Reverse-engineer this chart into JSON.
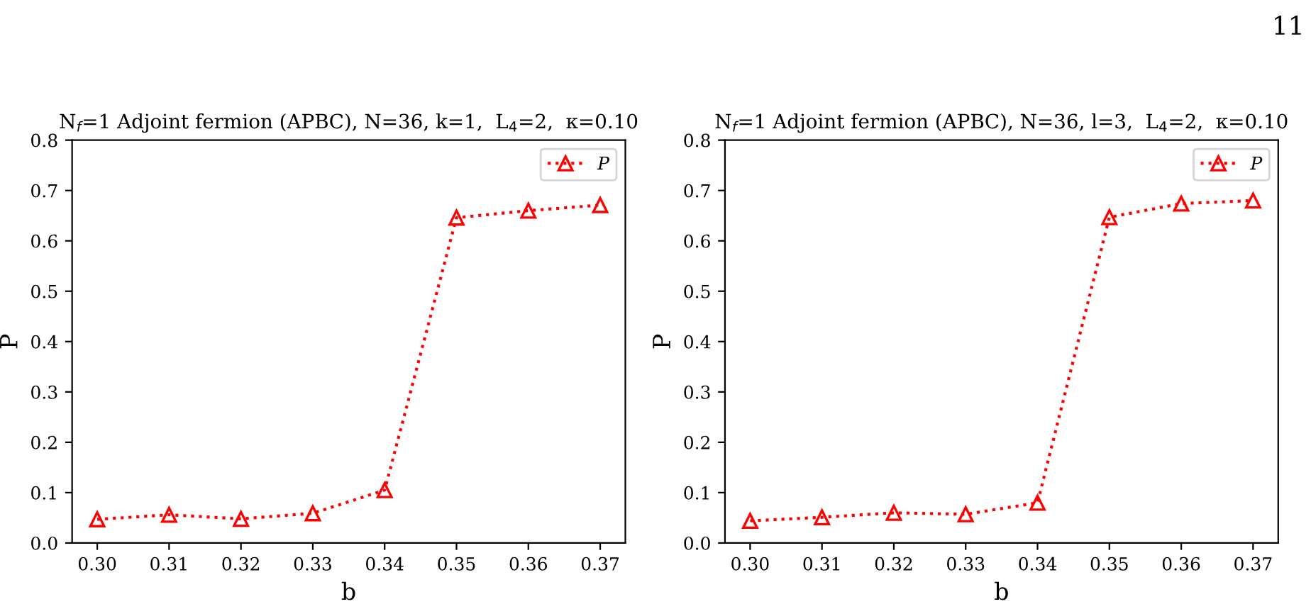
{
  "chart_data": [
    {
      "type": "line",
      "title": "N$_{f}$=1 Adjoint fermion (APBC), N=36, k=1,  L$_{4}$=2,  κ=0.10",
      "xlabel": "b",
      "ylabel": "P",
      "x": [
        0.3,
        0.31,
        0.32,
        0.33,
        0.34,
        0.35,
        0.36,
        0.37
      ],
      "xlim": [
        0.2965,
        0.3735
      ],
      "xticks": [
        {
          "value": 0.3,
          "label": "0.30"
        },
        0.31,
        0.32,
        0.33,
        0.34,
        0.35,
        0.36,
        0.37
      ],
      "ylim": [
        0,
        0.8
      ],
      "yticks": [
        {
          "value": 0,
          "label": "0.0"
        },
        0.1,
        0.2,
        0.3,
        0.4,
        0.5,
        0.6,
        0.7,
        0.8
      ],
      "marker": "triangle",
      "line_style": "dotted",
      "legend": "top right",
      "grid": false,
      "series": [
        {
          "name": "P",
          "color": "#ff0000",
          "values": [
            0.047,
            0.056,
            0.048,
            0.059,
            0.105,
            0.646,
            0.66,
            0.671
          ]
        }
      ]
    },
    {
      "type": "line",
      "title": "N$_{f}$=1 Adjoint fermion (APBC), N=36, l=3,  L$_{4}$=2,  κ=0.10",
      "xlabel": "b",
      "ylabel": "P",
      "x": [
        0.3,
        0.31,
        0.32,
        0.33,
        0.34,
        0.35,
        0.36,
        0.37
      ],
      "xlim": [
        0.2965,
        0.3735
      ],
      "xticks": [
        {
          "value": 0.3,
          "label": "0.30"
        },
        0.31,
        0.32,
        0.33,
        0.34,
        0.35,
        0.36,
        0.37
      ],
      "ylim": [
        0,
        0.8
      ],
      "yticks": [
        {
          "value": 0,
          "label": "0.0"
        },
        0.1,
        0.2,
        0.3,
        0.4,
        0.5,
        0.6,
        0.7,
        0.8
      ],
      "marker": "triangle",
      "line_style": "dotted",
      "legend": "top right",
      "grid": false,
      "annotations": [
        "11"
      ],
      "series": [
        {
          "name": "P",
          "color": "#ff0000",
          "values": [
            0.044,
            0.051,
            0.06,
            0.057,
            0.08,
            0.647,
            0.674,
            0.68
          ]
        }
      ]
    }
  ]
}
